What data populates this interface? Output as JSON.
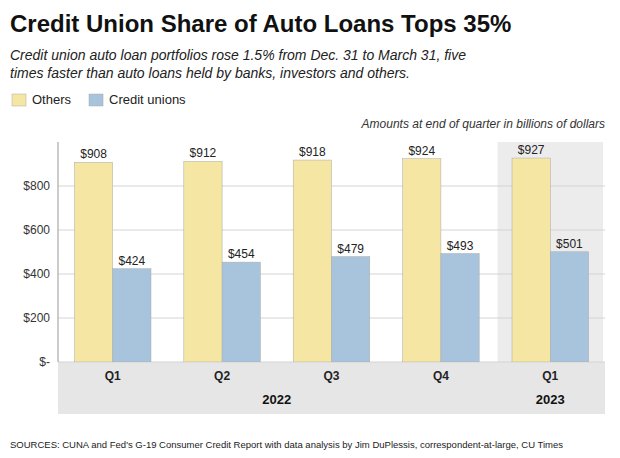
{
  "chart_data": {
    "type": "bar",
    "title": "Credit Union Share of Auto Loans Tops 35%",
    "subtitle": "Credit union auto loan portfolios rose 1.5% from Dec. 31 to March 31, five\ntimes faster than auto loans held by banks, investors and others.",
    "note": "Amounts at end of quarter in billions of dollars",
    "source": "SOURCES: CUNA and Fed's G-19 Consumer Credit Report with data analysis by Jim DuPlessis, correspondent-at-large, CU Times",
    "categories": [
      "Q1",
      "Q2",
      "Q3",
      "Q4",
      "Q1"
    ],
    "group_labels": [
      "2022",
      "2023"
    ],
    "series": [
      {
        "name": "Others",
        "color": "#F5E6A3",
        "values": [
          908,
          912,
          918,
          924,
          927
        ],
        "value_labels": [
          "$908",
          "$912",
          "$918",
          "$924",
          "$927"
        ]
      },
      {
        "name": "Credit unions",
        "color": "#A8C4DC",
        "values": [
          424,
          454,
          479,
          493,
          501
        ],
        "value_labels": [
          "$424",
          "$454",
          "$479",
          "$493",
          "$501"
        ]
      }
    ],
    "ylim": [
      0,
      1000
    ],
    "yticks": [
      {
        "value": 0,
        "label": "$-"
      },
      {
        "value": 200,
        "label": "$200"
      },
      {
        "value": 400,
        "label": "$400"
      },
      {
        "value": 600,
        "label": "$600"
      },
      {
        "value": 800,
        "label": "$800"
      }
    ],
    "grid": true,
    "legend": "upper left",
    "data_labels": true
  }
}
